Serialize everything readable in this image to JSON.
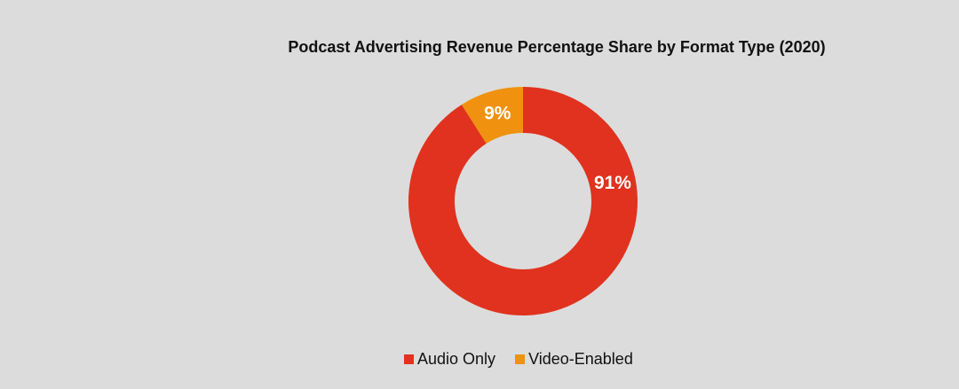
{
  "chart_data": {
    "type": "pie",
    "variant": "donut",
    "title": "Podcast Advertising Revenue Percentage Share by Format Type (2020)",
    "categories": [
      "Audio Only",
      "Video-Enabled"
    ],
    "values": [
      91,
      9
    ],
    "labels": [
      "91%",
      "9%"
    ],
    "colors": [
      "#e0321e",
      "#f0920f"
    ],
    "legend_position": "bottom-center",
    "start_angle": "top",
    "direction": "clockwise"
  }
}
